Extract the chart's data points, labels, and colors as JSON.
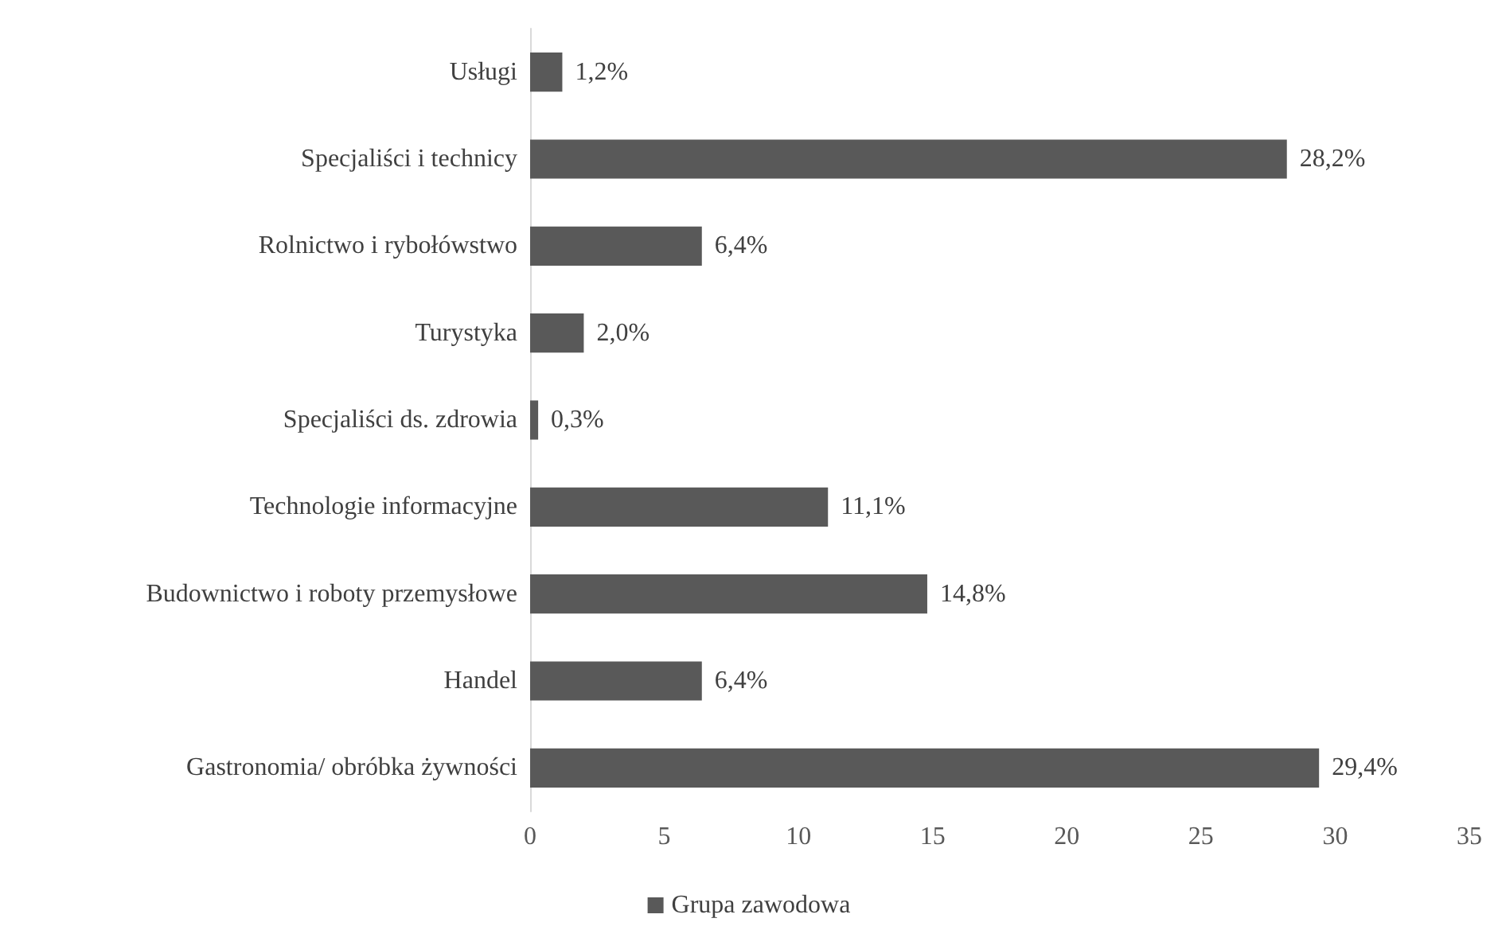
{
  "chart_data": {
    "type": "bar",
    "orientation": "horizontal",
    "categories": [
      "Usługi",
      "Specjaliści i technicy",
      "Rolnictwo i rybołówstwo",
      "Turystyka",
      "Specjaliści ds. zdrowia",
      "Technologie informacyjne",
      "Budownictwo i roboty przemysłowe",
      "Handel",
      "Gastronomia/ obróbka żywności"
    ],
    "series": [
      {
        "name": "Grupa zawodowa",
        "color": "#595959",
        "values": [
          1.2,
          28.2,
          6.4,
          2.0,
          0.3,
          11.1,
          14.8,
          6.4,
          29.4
        ],
        "value_labels": [
          "1,2%",
          "28,2%",
          "6,4%",
          "2,0%",
          "0,3%",
          "11,1%",
          "14,8%",
          "6,4%",
          "29,4%"
        ]
      }
    ],
    "xlim": [
      0,
      35
    ],
    "xticks": [
      0,
      5,
      10,
      15,
      20,
      25,
      30,
      35
    ],
    "grid": false,
    "legend": "bottom"
  }
}
